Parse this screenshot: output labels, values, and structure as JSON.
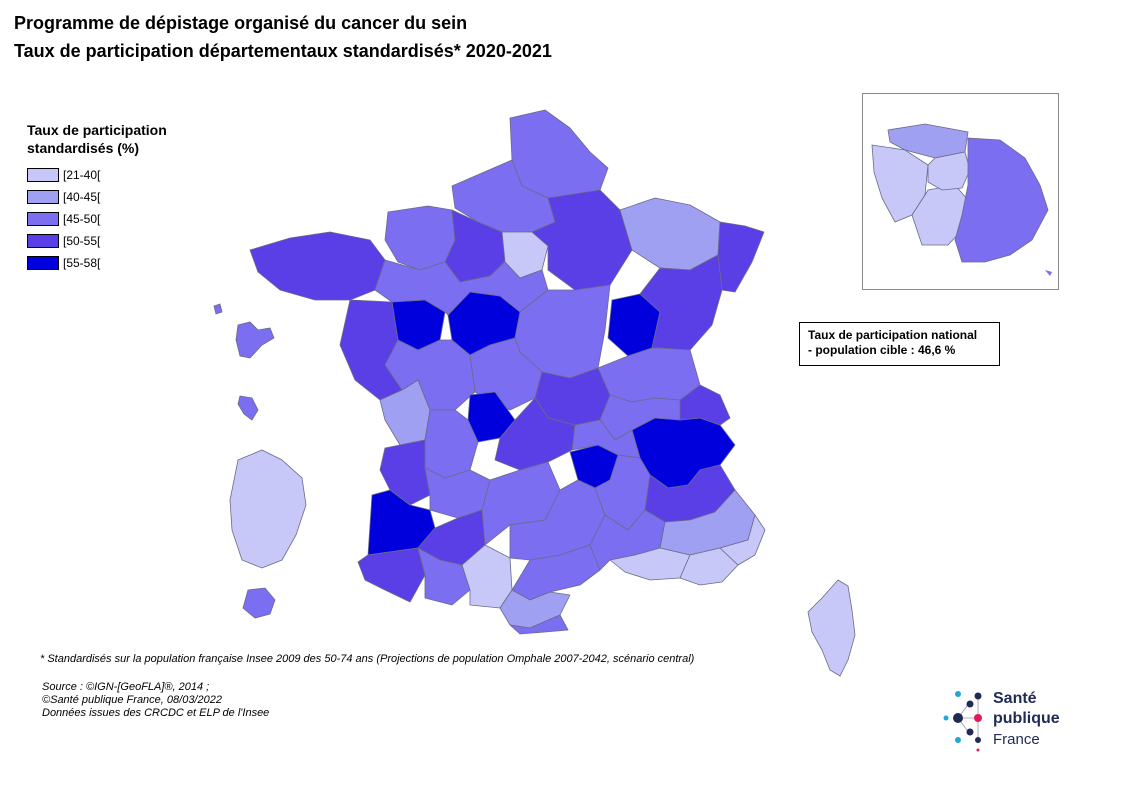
{
  "title_line1": "Programme de dépistage organisé du cancer du sein",
  "title_line2": "Taux de participation départementaux standardisés* 2020-2021",
  "legend": {
    "title_line1": "Taux de participation",
    "title_line2": "standardisés (%)",
    "items": [
      {
        "label": "[21-40[",
        "color": "#c8c8f8"
      },
      {
        "label": "[40-45[",
        "color": "#a0a0f2"
      },
      {
        "label": "[45-50[",
        "color": "#7b6ef0"
      },
      {
        "label": "[50-55[",
        "color": "#5a3ee6"
      },
      {
        "label": "[55-58[",
        "color": "#0000dd"
      }
    ]
  },
  "national_rate": {
    "line1": "Taux de participation national",
    "line2": "- population cible : 46,6 %"
  },
  "footnote": "* Standardisés sur la population française Insee 2009 des 50-74 ans (Projections de population Omphale 2007-2042, scénario central)",
  "source": {
    "line1": "Source : ©IGN-[GeoFLA]®, 2014 ;",
    "line2": "©Santé publique France, 08/03/2022",
    "line3": "Données issues des CRCDC et ELP de l'Insee"
  },
  "logo": {
    "line1": "Santé",
    "line2": "publique",
    "line3": "France"
  }
}
